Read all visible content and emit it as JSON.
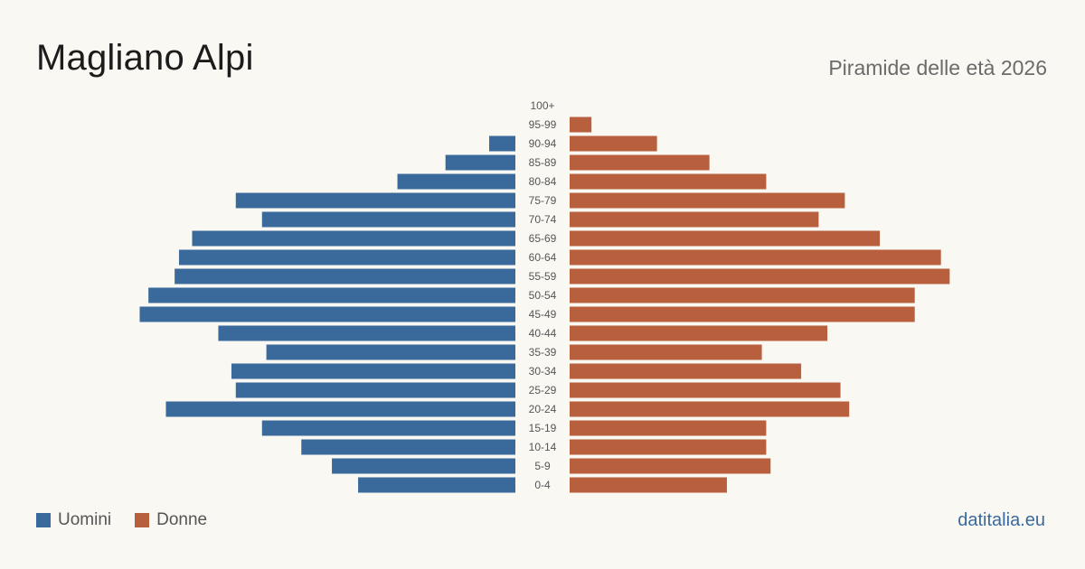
{
  "header": {
    "title": "Magliano Alpi",
    "subtitle": "Piramide delle età 2026"
  },
  "legend": {
    "male_label": "Uomini",
    "female_label": "Donne"
  },
  "footer": {
    "source": "datitalia.eu"
  },
  "colors": {
    "male": "#3a6a9c",
    "female": "#b85f3d",
    "source_link": "#3a6a9c",
    "age_label": "#555555"
  },
  "chart_data": {
    "type": "bar",
    "orientation": "horizontal-population-pyramid",
    "categories": [
      "100+",
      "95-99",
      "90-94",
      "85-89",
      "80-84",
      "75-79",
      "70-74",
      "65-69",
      "60-64",
      "55-59",
      "50-54",
      "45-49",
      "40-44",
      "35-39",
      "30-34",
      "25-29",
      "20-24",
      "15-19",
      "10-14",
      "5-9",
      "0-4"
    ],
    "series": [
      {
        "name": "Uomini",
        "values": [
          0,
          0,
          6,
          16,
          27,
          64,
          58,
          74,
          77,
          78,
          84,
          86,
          68,
          57,
          65,
          64,
          80,
          58,
          49,
          42,
          36
        ]
      },
      {
        "name": "Donne",
        "values": [
          0,
          5,
          20,
          32,
          45,
          63,
          57,
          71,
          85,
          87,
          79,
          79,
          59,
          44,
          53,
          62,
          64,
          45,
          45,
          46,
          36
        ]
      }
    ],
    "xlim": [
      0,
      89
    ],
    "grid": false,
    "legend_position": "bottom-left"
  }
}
